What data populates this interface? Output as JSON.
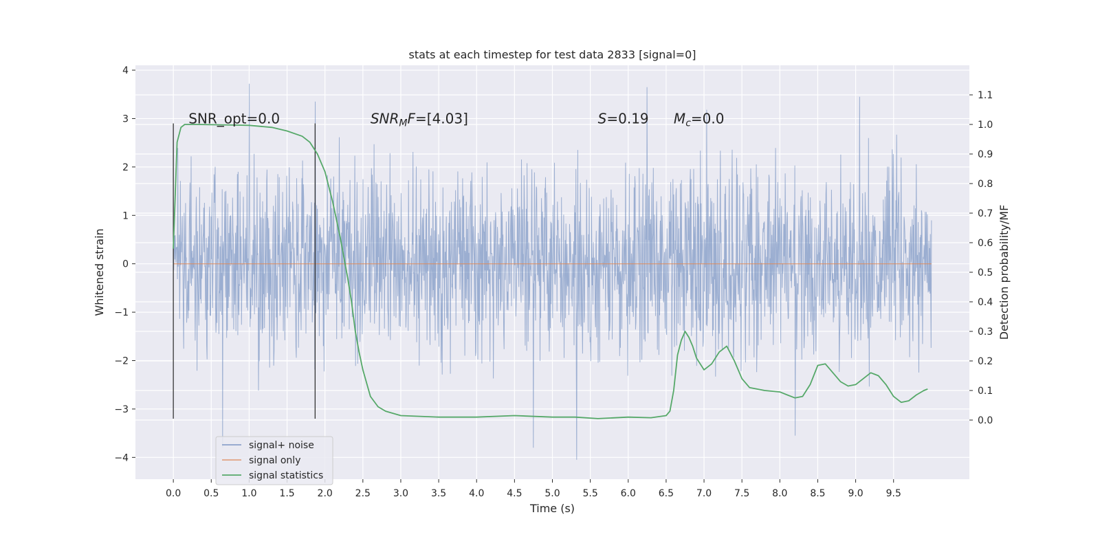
{
  "chart_data": {
    "type": "line",
    "title": "stats at each timestep for test data 2833 [signal=0]",
    "xlabel": "Time (s)",
    "ylabel": "Whitened strain",
    "ylabel_right": "Detection probability/MF",
    "xlim": [
      -0.5,
      10.5
    ],
    "ylim": [
      -4.45,
      4.1
    ],
    "ylim_right": [
      -0.2,
      1.2
    ],
    "xticks": [
      "0.0",
      "0.5",
      "1.0",
      "1.5",
      "2.0",
      "2.5",
      "3.0",
      "3.5",
      "4.0",
      "4.5",
      "5.0",
      "5.5",
      "6.0",
      "6.5",
      "7.0",
      "7.5",
      "8.0",
      "8.5",
      "9.0",
      "9.5"
    ],
    "yticks": [
      "4",
      "3",
      "2",
      "1",
      "0",
      "−1",
      "−2",
      "−3",
      "−4"
    ],
    "yticks_right": [
      "1.1",
      "1.0",
      "0.9",
      "0.8",
      "0.7",
      "0.6",
      "0.5",
      "0.4",
      "0.3",
      "0.2",
      "0.1",
      "0.0"
    ],
    "grid": true,
    "legend_position": "lower-left",
    "colors": {
      "noise": "#4c72b0",
      "signal": "#dd8452",
      "stats": "#55a868",
      "markers": "#333333",
      "background": "#eaeaf2"
    },
    "series": [
      {
        "name": "signal+ noise",
        "axis": "left",
        "x_range": [
          0.0,
          10.0
        ],
        "samples": 2048,
        "envelope_typical": [
          -2.4,
          2.4
        ],
        "peaks_high": [
          [
            1.0,
            3.72
          ],
          [
            1.87,
            3.35
          ],
          [
            6.25,
            3.65
          ],
          [
            9.05,
            3.45
          ]
        ],
        "peaks_low": [
          [
            0.65,
            -3.8
          ],
          [
            4.75,
            -3.8
          ],
          [
            5.32,
            -4.05
          ],
          [
            8.2,
            -3.55
          ]
        ]
      },
      {
        "name": "signal only",
        "axis": "left",
        "x": [
          0.0,
          10.0
        ],
        "y": [
          0.0,
          0.0
        ]
      },
      {
        "name": "signal statistics",
        "axis": "right",
        "x": [
          0.0,
          0.05,
          0.1,
          0.15,
          0.2,
          0.3,
          0.5,
          0.8,
          1.0,
          1.3,
          1.5,
          1.7,
          1.8,
          1.9,
          2.0,
          2.1,
          2.2,
          2.3,
          2.35,
          2.4,
          2.45,
          2.5,
          2.6,
          2.7,
          2.8,
          3.0,
          3.5,
          4.0,
          4.5,
          5.0,
          5.3,
          5.6,
          6.0,
          6.3,
          6.5,
          6.55,
          6.6,
          6.65,
          6.7,
          6.75,
          6.8,
          6.85,
          6.9,
          7.0,
          7.1,
          7.2,
          7.3,
          7.4,
          7.5,
          7.6,
          7.8,
          8.0,
          8.1,
          8.2,
          8.3,
          8.4,
          8.5,
          8.6,
          8.7,
          8.8,
          8.9,
          9.0,
          9.1,
          9.2,
          9.3,
          9.4,
          9.5,
          9.6,
          9.7,
          9.8,
          9.9,
          9.95
        ],
        "y": [
          0.58,
          0.94,
          0.99,
          1.0,
          1.0,
          1.0,
          0.999,
          0.998,
          0.997,
          0.99,
          0.978,
          0.96,
          0.94,
          0.9,
          0.84,
          0.74,
          0.62,
          0.48,
          0.4,
          0.3,
          0.23,
          0.17,
          0.08,
          0.045,
          0.03,
          0.015,
          0.01,
          0.01,
          0.015,
          0.01,
          0.01,
          0.005,
          0.01,
          0.008,
          0.015,
          0.03,
          0.1,
          0.22,
          0.27,
          0.3,
          0.28,
          0.25,
          0.21,
          0.17,
          0.19,
          0.23,
          0.25,
          0.2,
          0.14,
          0.11,
          0.1,
          0.095,
          0.085,
          0.075,
          0.08,
          0.12,
          0.185,
          0.19,
          0.16,
          0.13,
          0.115,
          0.12,
          0.14,
          0.16,
          0.15,
          0.12,
          0.08,
          0.06,
          0.065,
          0.085,
          0.1,
          0.105
        ]
      }
    ],
    "vertical_markers": [
      {
        "x": 0.0,
        "y_range": [
          -3.2,
          2.9
        ]
      },
      {
        "x": 1.87,
        "y_range": [
          -3.2,
          2.9
        ]
      }
    ],
    "annotations": [
      {
        "x": 0.2,
        "y": 3.0,
        "parts": [
          {
            "text": "SNR_opt=0.0",
            "style": "normal"
          }
        ]
      },
      {
        "x": 2.6,
        "y": 3.0,
        "parts": [
          {
            "text": "SNR",
            "style": "italic"
          },
          {
            "text": "M",
            "style": "italic-sub"
          },
          {
            "text": "F",
            "style": "italic"
          },
          {
            "text": "=[4.03]",
            "style": "normal"
          }
        ]
      },
      {
        "x": 5.6,
        "y": 3.0,
        "parts": [
          {
            "text": "S",
            "style": "italic"
          },
          {
            "text": "=0.19",
            "style": "normal"
          }
        ]
      },
      {
        "x": 6.6,
        "y": 3.0,
        "parts": [
          {
            "text": "M",
            "style": "italic"
          },
          {
            "text": "c",
            "style": "italic-sub"
          },
          {
            "text": "=0.0",
            "style": "normal"
          }
        ]
      }
    ]
  }
}
